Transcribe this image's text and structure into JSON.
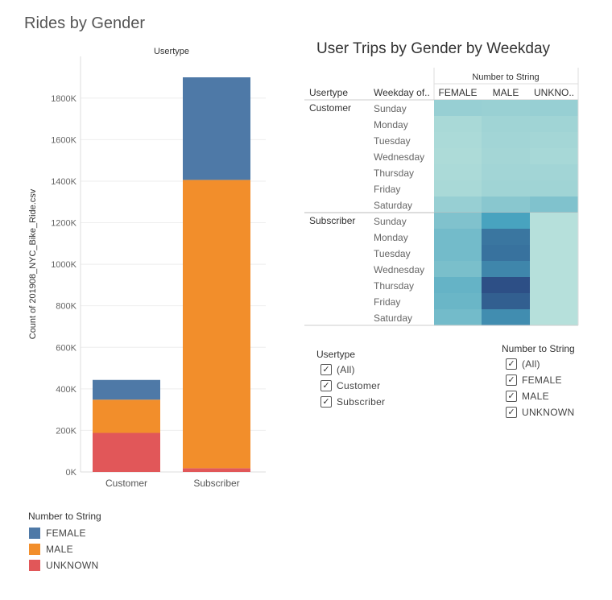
{
  "left_title": "Rides by Gender",
  "right_title": "User Trips by Gender by Weekday",
  "colors": {
    "FEMALE": "#4e79a7",
    "MALE": "#f28e2b",
    "UNKNOWN": "#e15759"
  },
  "chart_data": [
    {
      "type": "bar",
      "stacked": true,
      "title": "Rides by Gender",
      "column_header": "Usertype",
      "categories": [
        "Customer",
        "Subscriber"
      ],
      "series": [
        {
          "name": "UNKNOWN",
          "values": [
            188000,
            18000
          ]
        },
        {
          "name": "MALE",
          "values": [
            160000,
            1388000
          ]
        },
        {
          "name": "FEMALE",
          "values": [
            95000,
            494000
          ]
        }
      ],
      "ylabel": "Count of 201908_NYC_Bike_Ride.csv",
      "ylim": [
        0,
        1900000
      ],
      "yticks": [
        0,
        200000,
        400000,
        600000,
        800000,
        1000000,
        1200000,
        1400000,
        1600000,
        1800000
      ],
      "ytick_labels": [
        "0K",
        "200K",
        "400K",
        "600K",
        "800K",
        "1000K",
        "1200K",
        "1400K",
        "1600K",
        "1800K"
      ],
      "grid": true,
      "legend_title": "Number to String",
      "legend": [
        "FEMALE",
        "MALE",
        "UNKNOWN"
      ],
      "legend_position": "bottom-left"
    },
    {
      "type": "heatmap",
      "title": "User Trips by Gender by Weekday",
      "column_header_title": "Number to String",
      "row_header_1": "Usertype",
      "row_header_2": "Weekday of..",
      "columns": [
        "FEMALE",
        "MALE",
        "UNKNO.."
      ],
      "groups": [
        {
          "name": "Customer",
          "rows": [
            "Sunday",
            "Monday",
            "Tuesday",
            "Wednesday",
            "Thursday",
            "Friday",
            "Saturday"
          ],
          "values": [
            [
              0.2,
              0.19,
              0.2
            ],
            [
              0.12,
              0.16,
              0.16
            ],
            [
              0.11,
              0.15,
              0.14
            ],
            [
              0.1,
              0.14,
              0.13
            ],
            [
              0.11,
              0.15,
              0.15
            ],
            [
              0.12,
              0.16,
              0.16
            ],
            [
              0.2,
              0.26,
              0.3
            ]
          ]
        },
        {
          "name": "Subscriber",
          "rows": [
            "Sunday",
            "Monday",
            "Tuesday",
            "Wednesday",
            "Thursday",
            "Friday",
            "Saturday"
          ],
          "values": [
            [
              0.3,
              0.55,
              0.06
            ],
            [
              0.36,
              0.78,
              0.06
            ],
            [
              0.36,
              0.8,
              0.06
            ],
            [
              0.33,
              0.7,
              0.06
            ],
            [
              0.42,
              0.98,
              0.06
            ],
            [
              0.4,
              0.9,
              0.06
            ],
            [
              0.36,
              0.66,
              0.06
            ]
          ]
        }
      ]
    }
  ],
  "filters": {
    "usertype": {
      "title": "Usertype",
      "items": [
        "(All)",
        "Customer",
        "Subscriber"
      ]
    },
    "number_to_string": {
      "title": "Number to String",
      "items": [
        "(All)",
        "FEMALE",
        "MALE",
        "UNKNOWN"
      ]
    }
  },
  "checkmark": "✓"
}
